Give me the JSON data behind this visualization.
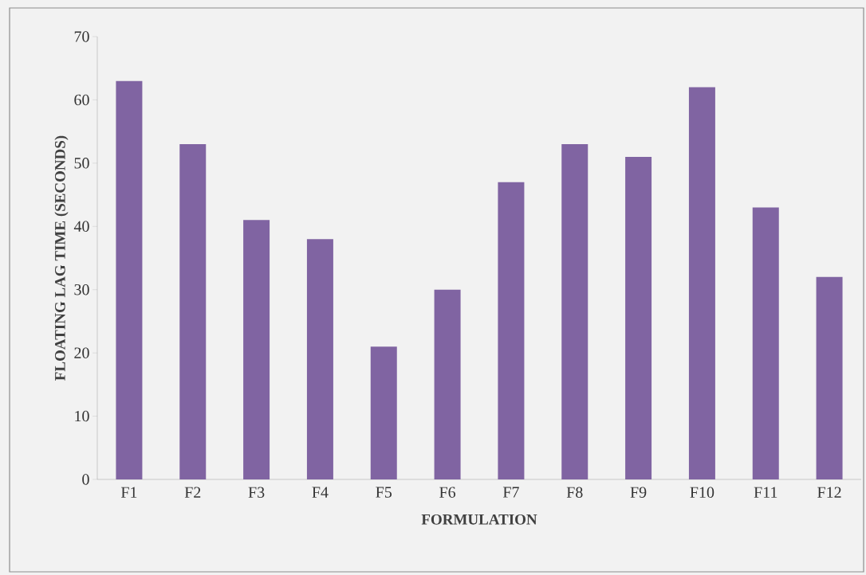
{
  "chart_data": {
    "type": "bar",
    "xlabel": "FORMULATION",
    "ylabel": "FLOATING LAG TIME (SECONDS)",
    "categories": [
      "F1",
      "F2",
      "F3",
      "F4",
      "F5",
      "F6",
      "F7",
      "F8",
      "F9",
      "F10",
      "F11",
      "F12"
    ],
    "values": [
      63,
      53,
      41,
      38,
      21,
      30,
      47,
      53,
      51,
      62,
      43,
      32
    ],
    "color": "#8064a2",
    "ylim": [
      0,
      70
    ],
    "yticks": [
      0,
      10,
      20,
      30,
      40,
      50,
      60,
      70
    ]
  }
}
